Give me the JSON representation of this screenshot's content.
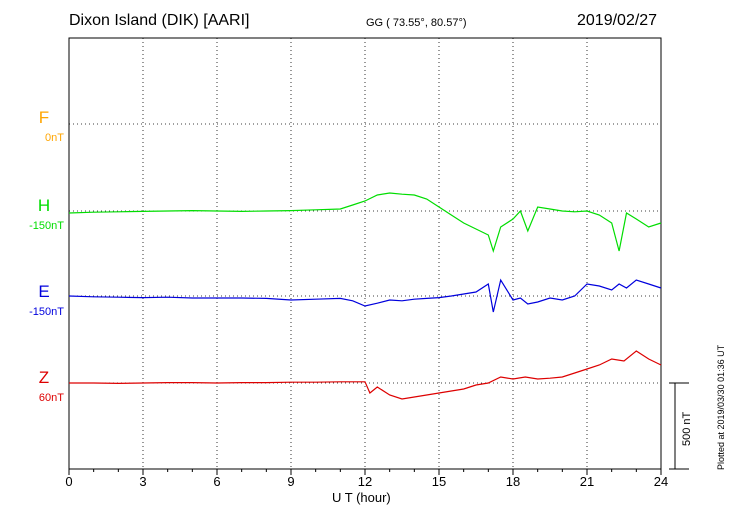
{
  "header": {
    "station": "Dixon Island (DIK)  [AARI]",
    "coords": "GG ( 73.55°,  80.57°)",
    "date": "2019/02/27"
  },
  "footer": {
    "plotted": "Plotted at 2019/03/30 01:36 UT"
  },
  "chart_data": {
    "type": "line",
    "xlabel": "U T (hour)",
    "xlim": [
      0,
      24
    ],
    "xticks": [
      "0",
      "3",
      "6",
      "9",
      "12",
      "15",
      "18",
      "21",
      "24"
    ],
    "grid": true,
    "scale_bar": {
      "label": "500 nT",
      "value": 500
    },
    "series": [
      {
        "name": "F",
        "offset": "0nT",
        "color": "#ffa500",
        "x": [],
        "y": []
      },
      {
        "name": "H",
        "offset": "-150nT",
        "color": "#00dd00",
        "x": [
          0,
          1,
          2,
          3,
          4,
          5,
          6,
          7,
          8,
          9,
          10,
          11,
          11.5,
          12,
          12.5,
          13,
          13.5,
          14,
          14.5,
          15,
          15.5,
          16,
          16.5,
          17,
          17.2,
          17.5,
          18,
          18.3,
          18.6,
          19,
          19.5,
          20,
          20.5,
          21,
          21.5,
          22,
          22.3,
          22.6,
          23,
          23.5,
          24
        ],
        "y": [
          -5,
          -3,
          -2,
          -1,
          0,
          1,
          0,
          -1,
          0,
          1,
          3,
          5,
          15,
          25,
          40,
          45,
          42,
          40,
          30,
          10,
          -10,
          -30,
          -45,
          -60,
          -100,
          -40,
          -20,
          0,
          -50,
          10,
          5,
          0,
          -2,
          0,
          -10,
          -30,
          -100,
          -5,
          -20,
          -40,
          -30
        ]
      },
      {
        "name": "E",
        "offset": "-150nT",
        "color": "#0000dd",
        "x": [
          0,
          1,
          2,
          3,
          4,
          5,
          6,
          7,
          8,
          9,
          10,
          11,
          11.5,
          12,
          12.5,
          13,
          13.5,
          14,
          14.5,
          15,
          15.5,
          16,
          16.5,
          17,
          17.2,
          17.5,
          18,
          18.3,
          18.6,
          19,
          19.5,
          20,
          20.5,
          21,
          21.5,
          22,
          22.3,
          22.6,
          23,
          23.5,
          24
        ],
        "y": [
          0,
          -2,
          -3,
          -4,
          -3,
          -5,
          -5,
          -5,
          -6,
          -10,
          -8,
          -6,
          -12,
          -25,
          -18,
          -10,
          -12,
          -8,
          -6,
          -4,
          0,
          5,
          10,
          30,
          -40,
          40,
          -10,
          -5,
          -20,
          -15,
          -5,
          -10,
          0,
          30,
          25,
          15,
          30,
          20,
          40,
          30,
          20
        ]
      },
      {
        "name": "Z",
        "offset": "60nT",
        "color": "#dd0000",
        "x": [
          0,
          1,
          2,
          3,
          4,
          5,
          6,
          7,
          8,
          9,
          10,
          11,
          11.5,
          12,
          12.2,
          12.5,
          13,
          13.5,
          14,
          14.5,
          15,
          15.5,
          16,
          16.5,
          17,
          17.5,
          18,
          18.5,
          19,
          19.5,
          20,
          20.5,
          21,
          21.5,
          22,
          22.5,
          23,
          23.5,
          24
        ],
        "y": [
          0,
          0,
          -1,
          0,
          1,
          1,
          0,
          1,
          1,
          2,
          2,
          3,
          3,
          3,
          -25,
          -10,
          -30,
          -40,
          -35,
          -30,
          -25,
          -20,
          -15,
          -5,
          0,
          15,
          10,
          15,
          10,
          12,
          15,
          25,
          35,
          45,
          60,
          55,
          80,
          60,
          45
        ]
      }
    ]
  }
}
